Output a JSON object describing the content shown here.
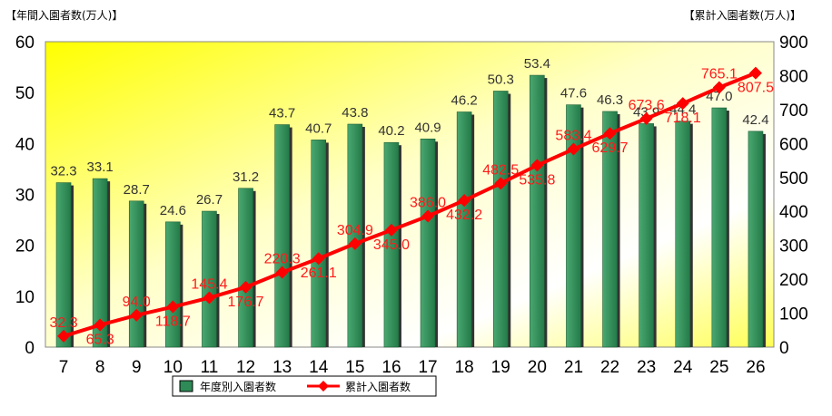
{
  "chart_data": {
    "type": "bar+line",
    "left_axis_title": "【年間入園者数(万人)】",
    "right_axis_title": "【累計入園者数(万人)】",
    "categories": [
      "7",
      "8",
      "9",
      "10",
      "11",
      "12",
      "13",
      "14",
      "15",
      "16",
      "17",
      "18",
      "19",
      "20",
      "21",
      "22",
      "23",
      "24",
      "25",
      "26"
    ],
    "series": [
      {
        "name": "年度別入園者数",
        "type": "bar",
        "axis": "left",
        "color": "#2e8b57",
        "values": [
          32.3,
          33.1,
          28.7,
          24.6,
          26.7,
          31.2,
          43.7,
          40.7,
          43.8,
          40.2,
          40.9,
          46.2,
          50.3,
          53.4,
          47.6,
          46.3,
          43.9,
          44.4,
          47.0,
          42.4
        ],
        "labels": [
          "32.3",
          "33.1",
          "28.7",
          "24.6",
          "26.7",
          "31.2",
          "43.7",
          "40.7",
          "43.8",
          "40.2",
          "40.9",
          "46.2",
          "50.3",
          "53.4",
          "47.6",
          "46.3",
          "43.9",
          "44.4",
          "47.0",
          "42.4"
        ]
      },
      {
        "name": "累計入園者数",
        "type": "line",
        "axis": "right",
        "color": "#ff0000",
        "values": [
          32.3,
          65.3,
          94.0,
          118.7,
          145.4,
          176.7,
          220.3,
          261.1,
          304.9,
          345.0,
          386.0,
          432.2,
          482.5,
          535.8,
          583.4,
          629.7,
          673.6,
          718.1,
          765.1,
          807.5
        ],
        "labels": [
          "32.3",
          "65.3",
          "94.0",
          "118.7",
          "145.4",
          "176.7",
          "220.3",
          "261.1",
          "304.9",
          "345.0",
          "386.0",
          "432.2",
          "482.5",
          "535.8",
          "583.4",
          "629.7",
          "673.6",
          "718.1",
          "765.1",
          "807.5"
        ]
      }
    ],
    "left_axis": {
      "min": 0,
      "max": 60,
      "ticks": [
        "0",
        "10",
        "20",
        "30",
        "40",
        "50",
        "60"
      ]
    },
    "right_axis": {
      "min": 0,
      "max": 900,
      "ticks": [
        "0",
        "100",
        "200",
        "300",
        "400",
        "500",
        "600",
        "700",
        "800",
        "900"
      ]
    },
    "legend_position": "bottom"
  }
}
